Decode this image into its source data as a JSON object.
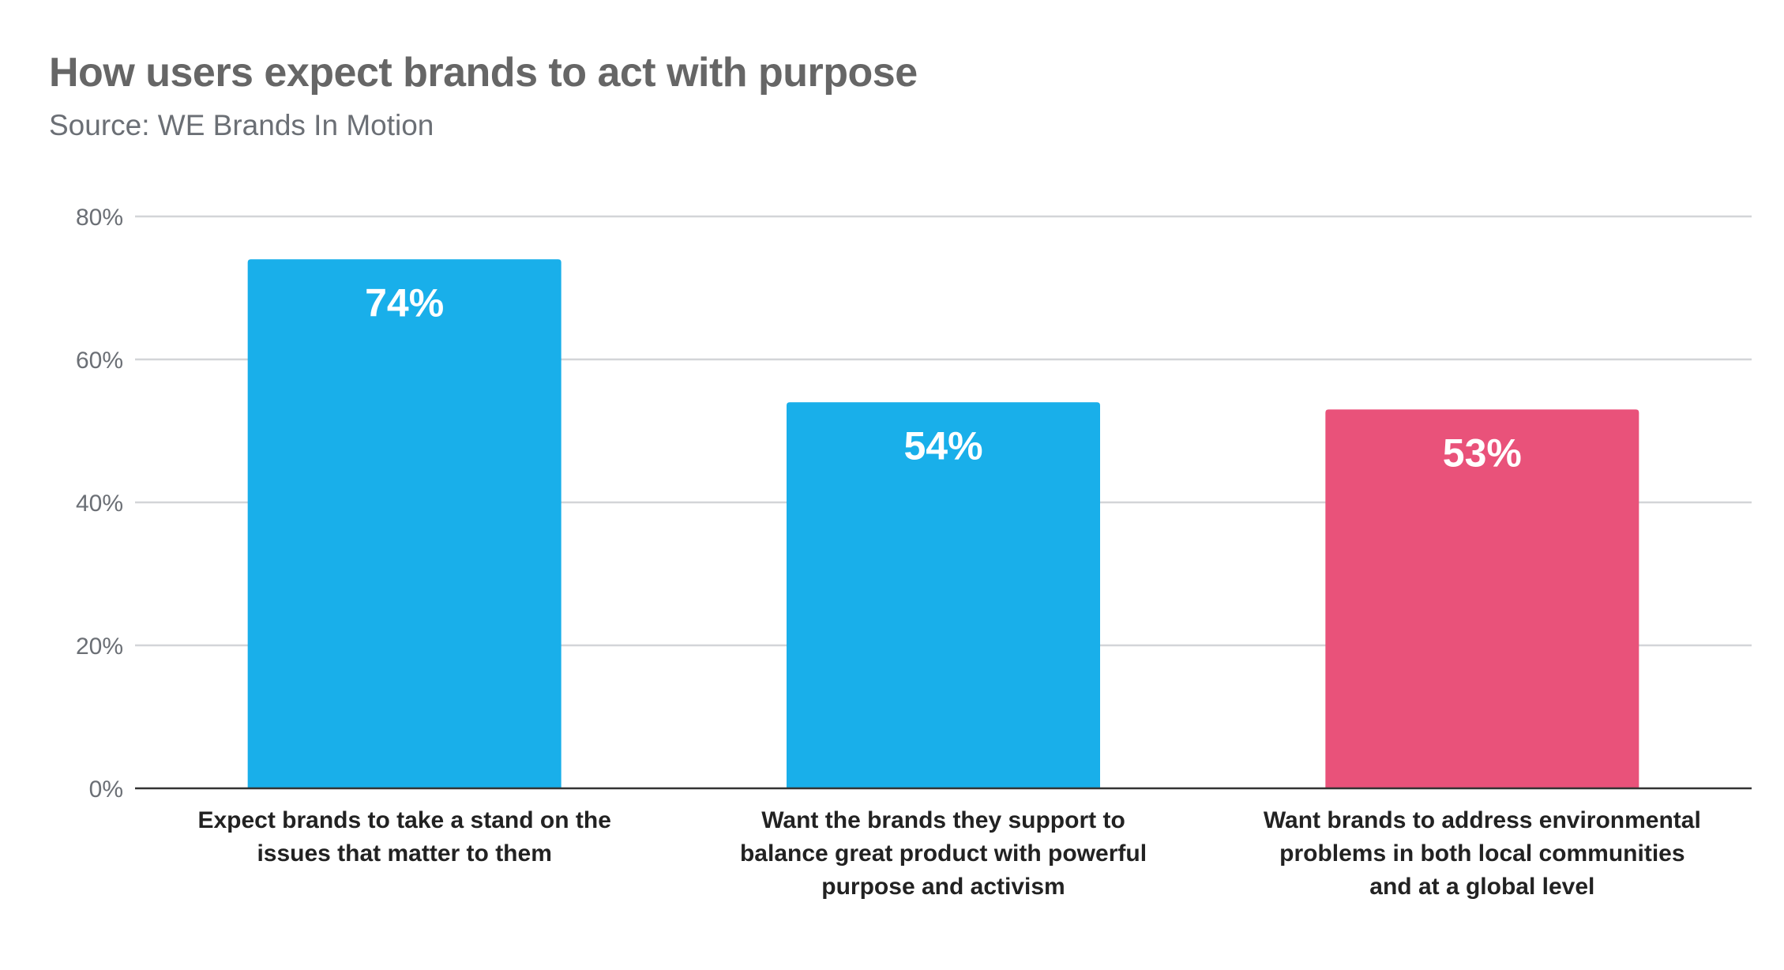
{
  "chart_data": {
    "type": "bar",
    "title": "How users expect brands to act with purpose",
    "subtitle": "Source: WE Brands In Motion",
    "categories": [
      [
        "Expect brands to take a stand on the",
        "issues that matter to them"
      ],
      [
        "Want the brands they support to",
        "balance great product with powerful",
        "purpose and activism"
      ],
      [
        "Want brands to address environmental",
        "problems in both local communities",
        "and at a global level"
      ]
    ],
    "values": [
      74,
      54,
      53
    ],
    "data_labels": [
      "74%",
      "54%",
      "53%"
    ],
    "colors": [
      "#19AFEA",
      "#19AFEA",
      "#E9527A"
    ],
    "ylim": [
      0,
      80
    ],
    "yticks": [
      0,
      20,
      40,
      60,
      80
    ],
    "ytick_labels": [
      "0%",
      "20%",
      "40%",
      "60%",
      "80%"
    ],
    "xlabel": "",
    "ylabel": "",
    "grid": true,
    "legend": "none"
  }
}
